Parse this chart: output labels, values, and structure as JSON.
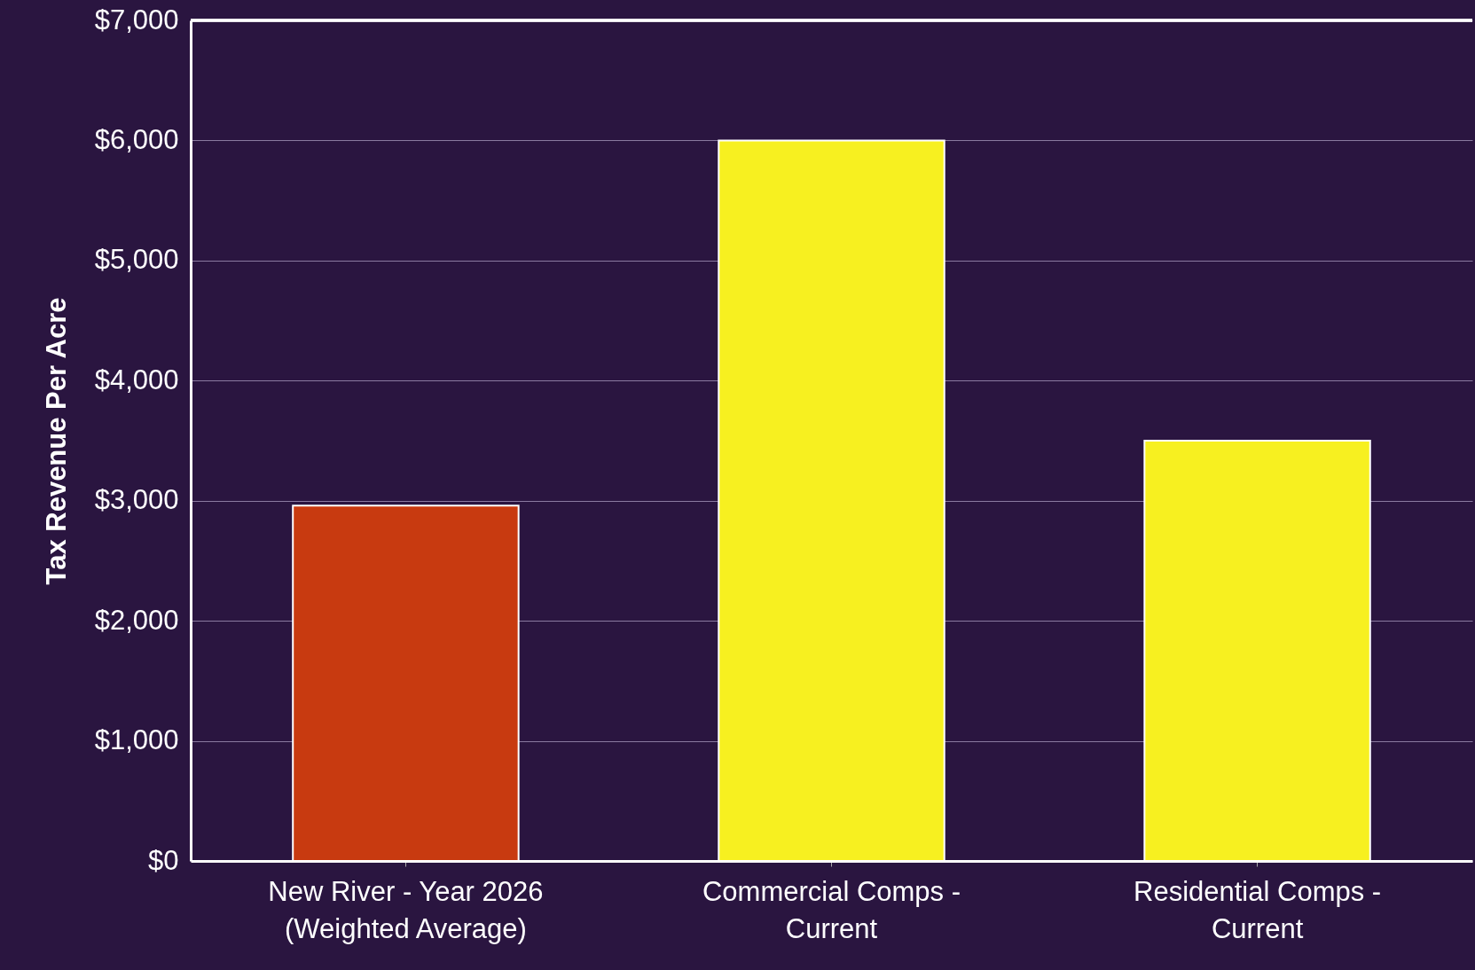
{
  "chart_data": {
    "type": "bar",
    "ylabel": "Tax Revenue Per Acre",
    "categories": [
      "New River  - Year 2026\n(Weighted Average)",
      "Commercial Comps -\nCurrent",
      "Residential Comps -\nCurrent"
    ],
    "values": [
      2960,
      6000,
      3500
    ],
    "colors": [
      "#c83a10",
      "#f7f020",
      "#f7f020"
    ],
    "ylim": [
      0,
      7000
    ],
    "yticks": [
      {
        "value": 0,
        "label": "$0"
      },
      {
        "value": 1000,
        "label": "$1,000"
      },
      {
        "value": 2000,
        "label": "$2,000"
      },
      {
        "value": 3000,
        "label": "$3,000"
      },
      {
        "value": 4000,
        "label": "$4,000"
      },
      {
        "value": 5000,
        "label": "$5,000"
      },
      {
        "value": 6000,
        "label": "$6,000"
      },
      {
        "value": 7000,
        "label": "$7,000"
      }
    ],
    "grid": "y"
  }
}
